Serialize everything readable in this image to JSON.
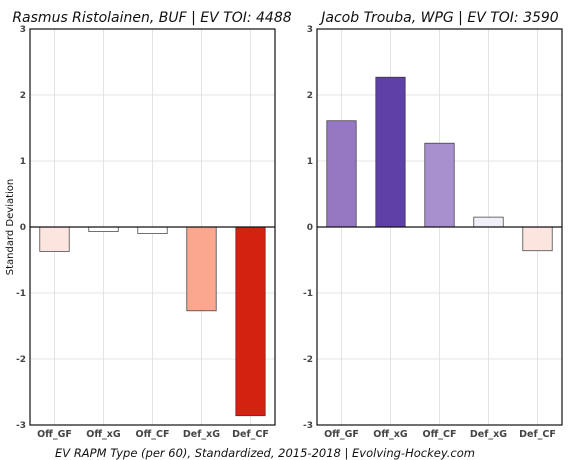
{
  "chart_data": [
    {
      "type": "bar",
      "title": "Rasmus Ristolainen, BUF  |  EV TOI: 4488",
      "ylabel": "Standard Deviation",
      "categories": [
        "Off_GF",
        "Off_xG",
        "Off_CF",
        "Def_xG",
        "Def_CF"
      ],
      "values": [
        -0.37,
        -0.07,
        -0.1,
        -1.27,
        -2.86
      ],
      "colors": [
        "#fde5df",
        "#ffffff",
        "#ffffff",
        "#fba68e",
        "#d42211"
      ],
      "ylim": [
        -3,
        3
      ],
      "yticks": [
        "-3",
        "-2",
        "-1",
        "0",
        "1",
        "2",
        "3"
      ],
      "grid": true
    },
    {
      "type": "bar",
      "title": "Jacob Trouba, WPG  |  EV TOI: 3590",
      "ylabel": "",
      "categories": [
        "Off_GF",
        "Off_xG",
        "Off_CF",
        "Def_xG",
        "Def_CF"
      ],
      "values": [
        1.61,
        2.27,
        1.27,
        0.15,
        -0.36
      ],
      "colors": [
        "#9678c2",
        "#5e40a6",
        "#a890cf",
        "#f1eff7",
        "#fde5df"
      ],
      "ylim": [
        -3,
        3
      ],
      "yticks": [
        "-3",
        "-2",
        "-1",
        "0",
        "1",
        "2",
        "3"
      ],
      "grid": true
    }
  ],
  "caption": "EV RAPM Type (per 60), Standardized, 2015-2018    |    Evolving-Hockey.com"
}
